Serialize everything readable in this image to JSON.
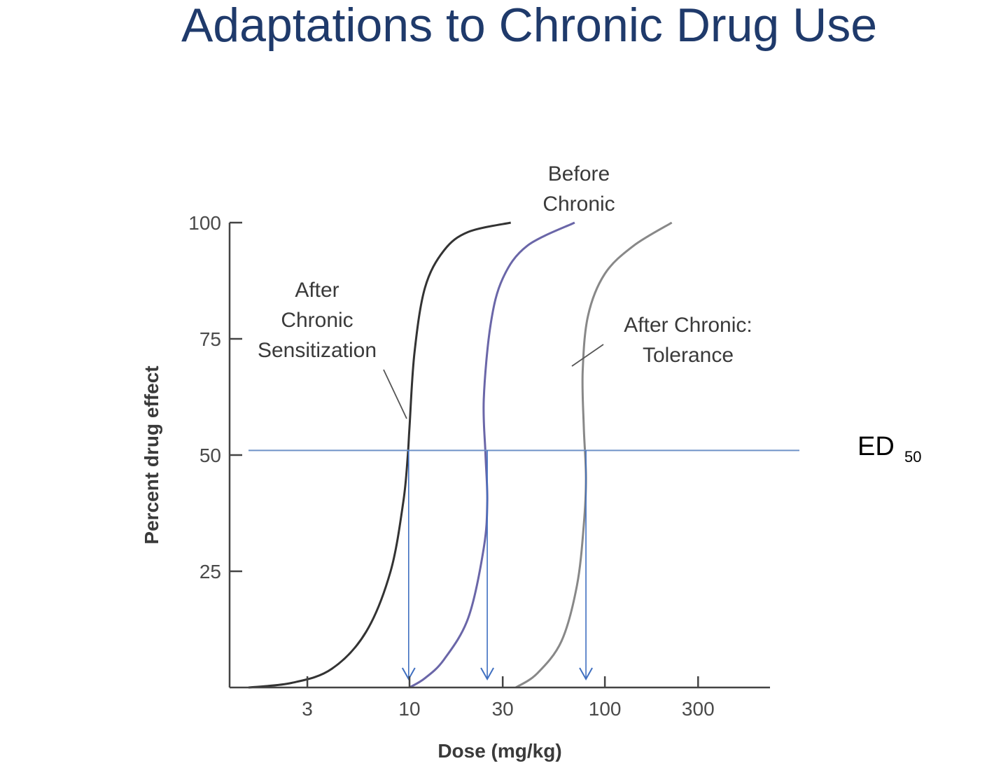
{
  "slide": {
    "title": "Adaptations to Chronic Drug Use"
  },
  "chart_data": {
    "type": "line",
    "title": "",
    "xlabel": "Dose (mg/kg)",
    "ylabel": "Percent drug effect",
    "x_scale": "log",
    "xlim": [
      1.2,
      700
    ],
    "ylim": [
      0,
      100
    ],
    "x_ticks": [
      3,
      10,
      30,
      100,
      300
    ],
    "x_tick_labels": [
      "3",
      "10",
      "30",
      "100",
      "300"
    ],
    "y_ticks": [
      25,
      50,
      75,
      100
    ],
    "y_tick_labels": [
      "25",
      "50",
      "75",
      "100"
    ],
    "grid": false,
    "reference_line": {
      "y": 51,
      "label": "ED",
      "label_sub": "50"
    },
    "series": [
      {
        "name": "After Chronic Sensitization",
        "color": "#333333",
        "x": [
          1.5,
          2.5,
          4,
          6,
          8,
          9.3,
          9.8,
          10,
          10.6,
          12,
          15,
          20,
          33
        ],
        "y": [
          0,
          1,
          4,
          12,
          25,
          40,
          50,
          56,
          72,
          86,
          94,
          98,
          100
        ],
        "ed50": 9.9
      },
      {
        "name": "Before Chronic",
        "color": "#6a66a8",
        "x": [
          10,
          12,
          15,
          20,
          24,
          25,
          24.5,
          24,
          26,
          30,
          40,
          70
        ],
        "y": [
          0,
          2,
          6,
          15,
          30,
          40,
          50,
          62,
          78,
          88,
          95,
          100
        ],
        "ed50": 25
      },
      {
        "name": "After Chronic: Tolerance",
        "color": "#888888",
        "x": [
          35,
          45,
          60,
          72,
          78,
          80,
          78,
          77,
          82,
          100,
          140,
          220
        ],
        "y": [
          0,
          3,
          10,
          22,
          35,
          45,
          56,
          68,
          80,
          89,
          95,
          100
        ],
        "ed50": 80
      }
    ],
    "annotations": [
      {
        "series": "After Chronic Sensitization",
        "lines": [
          "After",
          "Chronic",
          "Sensitization"
        ]
      },
      {
        "series": "Before Chronic",
        "lines": [
          "Before",
          "Chronic"
        ]
      },
      {
        "series": "After Chronic: Tolerance",
        "lines": [
          "After Chronic:",
          "Tolerance"
        ]
      }
    ],
    "arrow_color": "#3f6fc0",
    "reference_color": "#6f92c8"
  }
}
